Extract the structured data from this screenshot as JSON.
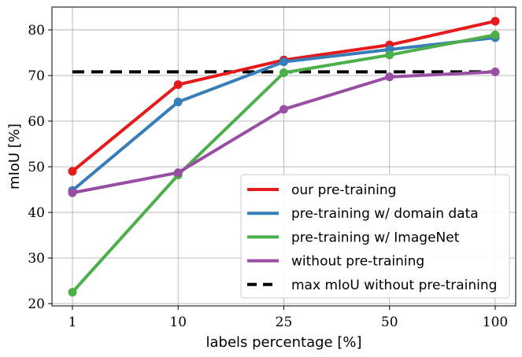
{
  "chart_data": {
    "type": "line",
    "xlabel": "labels percentage [%]",
    "ylabel": "mIoU [%]",
    "categories": [
      "1",
      "10",
      "25",
      "50",
      "100"
    ],
    "x_scale": "categorical",
    "ylim": [
      19.5,
      85
    ],
    "yticks": [
      20,
      30,
      40,
      50,
      60,
      70,
      80
    ],
    "grid": true,
    "legend_position": "lower-right",
    "series": [
      {
        "name": "our pre-training",
        "color": "#e41a1c",
        "values": [
          49.0,
          68.0,
          73.4,
          76.7,
          81.9
        ]
      },
      {
        "name": "pre-training w/ domain data",
        "color": "#377eb8",
        "values": [
          44.8,
          64.2,
          73.0,
          75.7,
          78.3
        ]
      },
      {
        "name": "pre-training w/ ImageNet",
        "color": "#4daf4a",
        "values": [
          22.5,
          48.2,
          70.6,
          74.5,
          78.9
        ]
      },
      {
        "name": "without pre-training",
        "color": "#984ea3",
        "values": [
          44.3,
          48.7,
          62.6,
          69.7,
          70.8
        ]
      }
    ],
    "reference_line": {
      "name": "max mIoU without pre-training",
      "color": "#000000",
      "style": "dashed",
      "value": 70.8
    }
  }
}
